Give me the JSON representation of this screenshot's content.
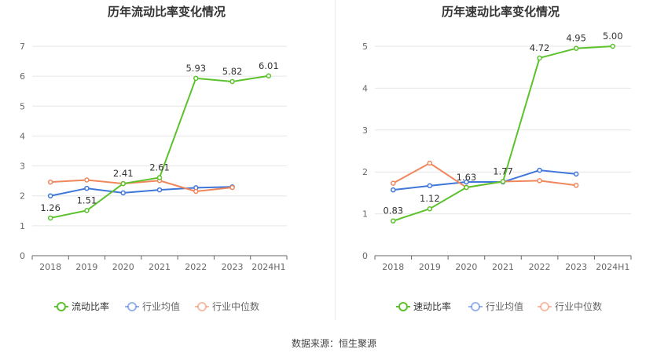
{
  "source_label": "数据来源：恒生聚源",
  "colors": {
    "company": "#5cc22c",
    "industry_avg": "#3f76d9",
    "industry_median": "#f0875c"
  },
  "chart_data": [
    {
      "type": "line",
      "title": "历年流动比率变化情况",
      "categories": [
        "2018",
        "2019",
        "2020",
        "2021",
        "2022",
        "2023",
        "2024H1"
      ],
      "ylim": [
        0,
        7
      ],
      "yticks": [
        "0",
        "1",
        "2",
        "3",
        "4",
        "5",
        "6",
        "7"
      ],
      "grid": true,
      "legend_position": "bottom",
      "series": [
        {
          "name": "流动比率",
          "color": "#5cc22c",
          "values": [
            1.26,
            1.51,
            2.41,
            2.61,
            5.93,
            5.82,
            6.01
          ],
          "labels": [
            "1.26",
            "1.51",
            "2.41",
            "2.61",
            "5.93",
            "5.82",
            "6.01"
          ]
        },
        {
          "name": "行业均值",
          "color": "#3f76d9",
          "values": [
            2.0,
            2.25,
            2.1,
            2.2,
            2.27,
            2.3,
            null
          ]
        },
        {
          "name": "行业中位数",
          "color": "#f0875c",
          "values": [
            2.46,
            2.53,
            2.41,
            2.51,
            2.15,
            2.28,
            null
          ]
        }
      ]
    },
    {
      "type": "line",
      "title": "历年速动比率变化情况",
      "categories": [
        "2018",
        "2019",
        "2020",
        "2021",
        "2022",
        "2023",
        "2024H1"
      ],
      "ylim": [
        0,
        5
      ],
      "yticks": [
        "0",
        "1",
        "2",
        "3",
        "4",
        "5"
      ],
      "grid": true,
      "legend_position": "bottom",
      "series": [
        {
          "name": "速动比率",
          "color": "#5cc22c",
          "values": [
            0.83,
            1.12,
            1.63,
            1.77,
            4.72,
            4.95,
            5.0
          ],
          "labels": [
            "0.83",
            "1.12",
            "1.63",
            "1.77",
            "4.72",
            "4.95",
            "5.00"
          ]
        },
        {
          "name": "行业均值",
          "color": "#3f76d9",
          "values": [
            1.57,
            1.67,
            1.76,
            1.76,
            2.04,
            1.95,
            null
          ]
        },
        {
          "name": "行业中位数",
          "color": "#f0875c",
          "values": [
            1.73,
            2.21,
            1.63,
            1.77,
            1.79,
            1.68,
            null
          ]
        }
      ]
    }
  ]
}
